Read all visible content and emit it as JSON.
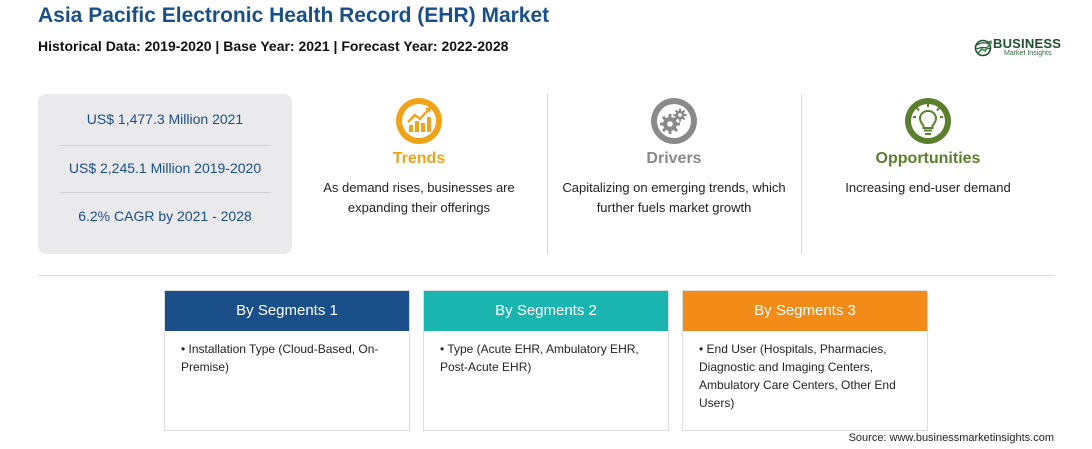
{
  "header": {
    "title": "Asia Pacific Electronic Health Record (EHR) Market",
    "subtitle": "Historical Data: 2019-2020 | Base Year: 2021 | Forecast Year: 2022-2028"
  },
  "logo": {
    "word": "BUSINESS",
    "sub": "Market Insights"
  },
  "stats": [
    "US$ 1,477.3 Million 2021",
    "US$ 2,245.1 Million 2019-2020",
    "6.2% CAGR by 2021 - 2028"
  ],
  "columns": [
    {
      "icon": "trend-chart-icon",
      "heading": "Trends",
      "color": "#f0a317",
      "text": "As demand rises, businesses are expanding their offerings"
    },
    {
      "icon": "gears-icon",
      "heading": "Drivers",
      "color": "#8a8a8a",
      "text": "Capitalizing on emerging trends, which further fuels market growth"
    },
    {
      "icon": "lightbulb-icon",
      "heading": "Opportunities",
      "color": "#5b7f2c",
      "text": "Increasing end-user demand"
    }
  ],
  "segments": [
    {
      "title": "By Segments 1",
      "color": "#1b4f8a",
      "text": "Installation Type (Cloud-Based, On-Premise)"
    },
    {
      "title": "By Segments 2",
      "color": "#1bb5b0",
      "text": "Type (Acute EHR, Ambulatory EHR, Post-Acute EHR)"
    },
    {
      "title": "By Segments 3",
      "color": "#f28b17",
      "text": "End User (Hospitals, Pharmacies, Diagnostic and Imaging Centers, Ambulatory Care Centers, Other End Users)"
    }
  ],
  "source": "Source: www.businessmarketinsights.com"
}
